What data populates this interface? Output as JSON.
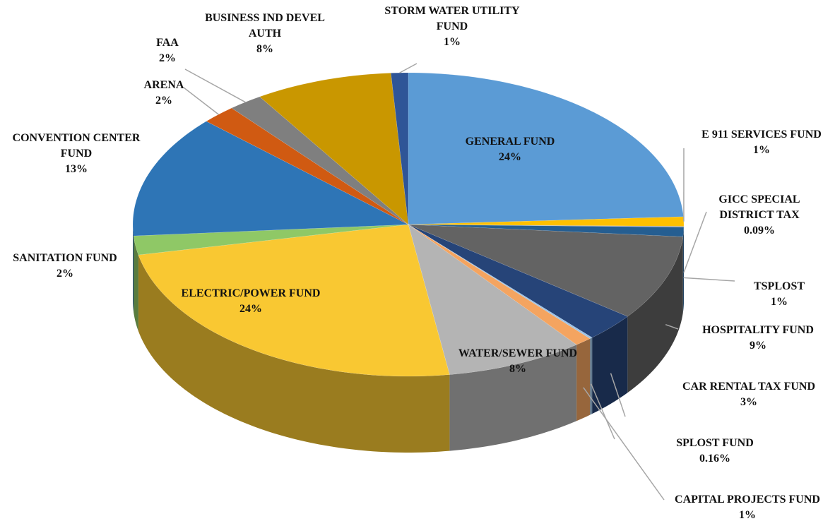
{
  "chart_data": {
    "type": "pie",
    "categories": [
      "GENERAL FUND",
      "E 911 SERVICES FUND",
      "GICC SPECIAL DISTRICT TAX",
      "TSPLOST",
      "HOSPITALITY FUND",
      "CAR RENTAL TAX FUND",
      "SPLOST FUND",
      "CAPITAL PROJECTS FUND",
      "WATER/SEWER FUND",
      "ELECTRIC/POWER FUND",
      "SANITATION FUND",
      "CONVENTION CENTER FUND",
      "ARENA",
      "FAA",
      "BUSINESS IND DEVEL AUTH",
      "STORM WATER UTILITY FUND"
    ],
    "values": [
      24,
      1,
      0.09,
      1,
      9,
      3,
      0.16,
      1,
      8,
      24,
      2,
      13,
      2,
      2,
      8,
      1
    ],
    "value_labels": [
      "24%",
      "1%",
      "0.09%",
      "1%",
      "9%",
      "3%",
      "0.16%",
      "1%",
      "8%",
      "24%",
      "2%",
      "13%",
      "2%",
      "2%",
      "8%",
      "1%"
    ],
    "colors": [
      "#5b9bd5",
      "#ffc000",
      "#a5a5a5",
      "#255e91",
      "#636363",
      "#264478",
      "#9dc3e6",
      "#f4a460",
      "#b4b4b4",
      "#f9c832",
      "#8fc866",
      "#2e75b6",
      "#d05a12",
      "#7f7f7f",
      "#c99700",
      "#2f5597"
    ]
  }
}
